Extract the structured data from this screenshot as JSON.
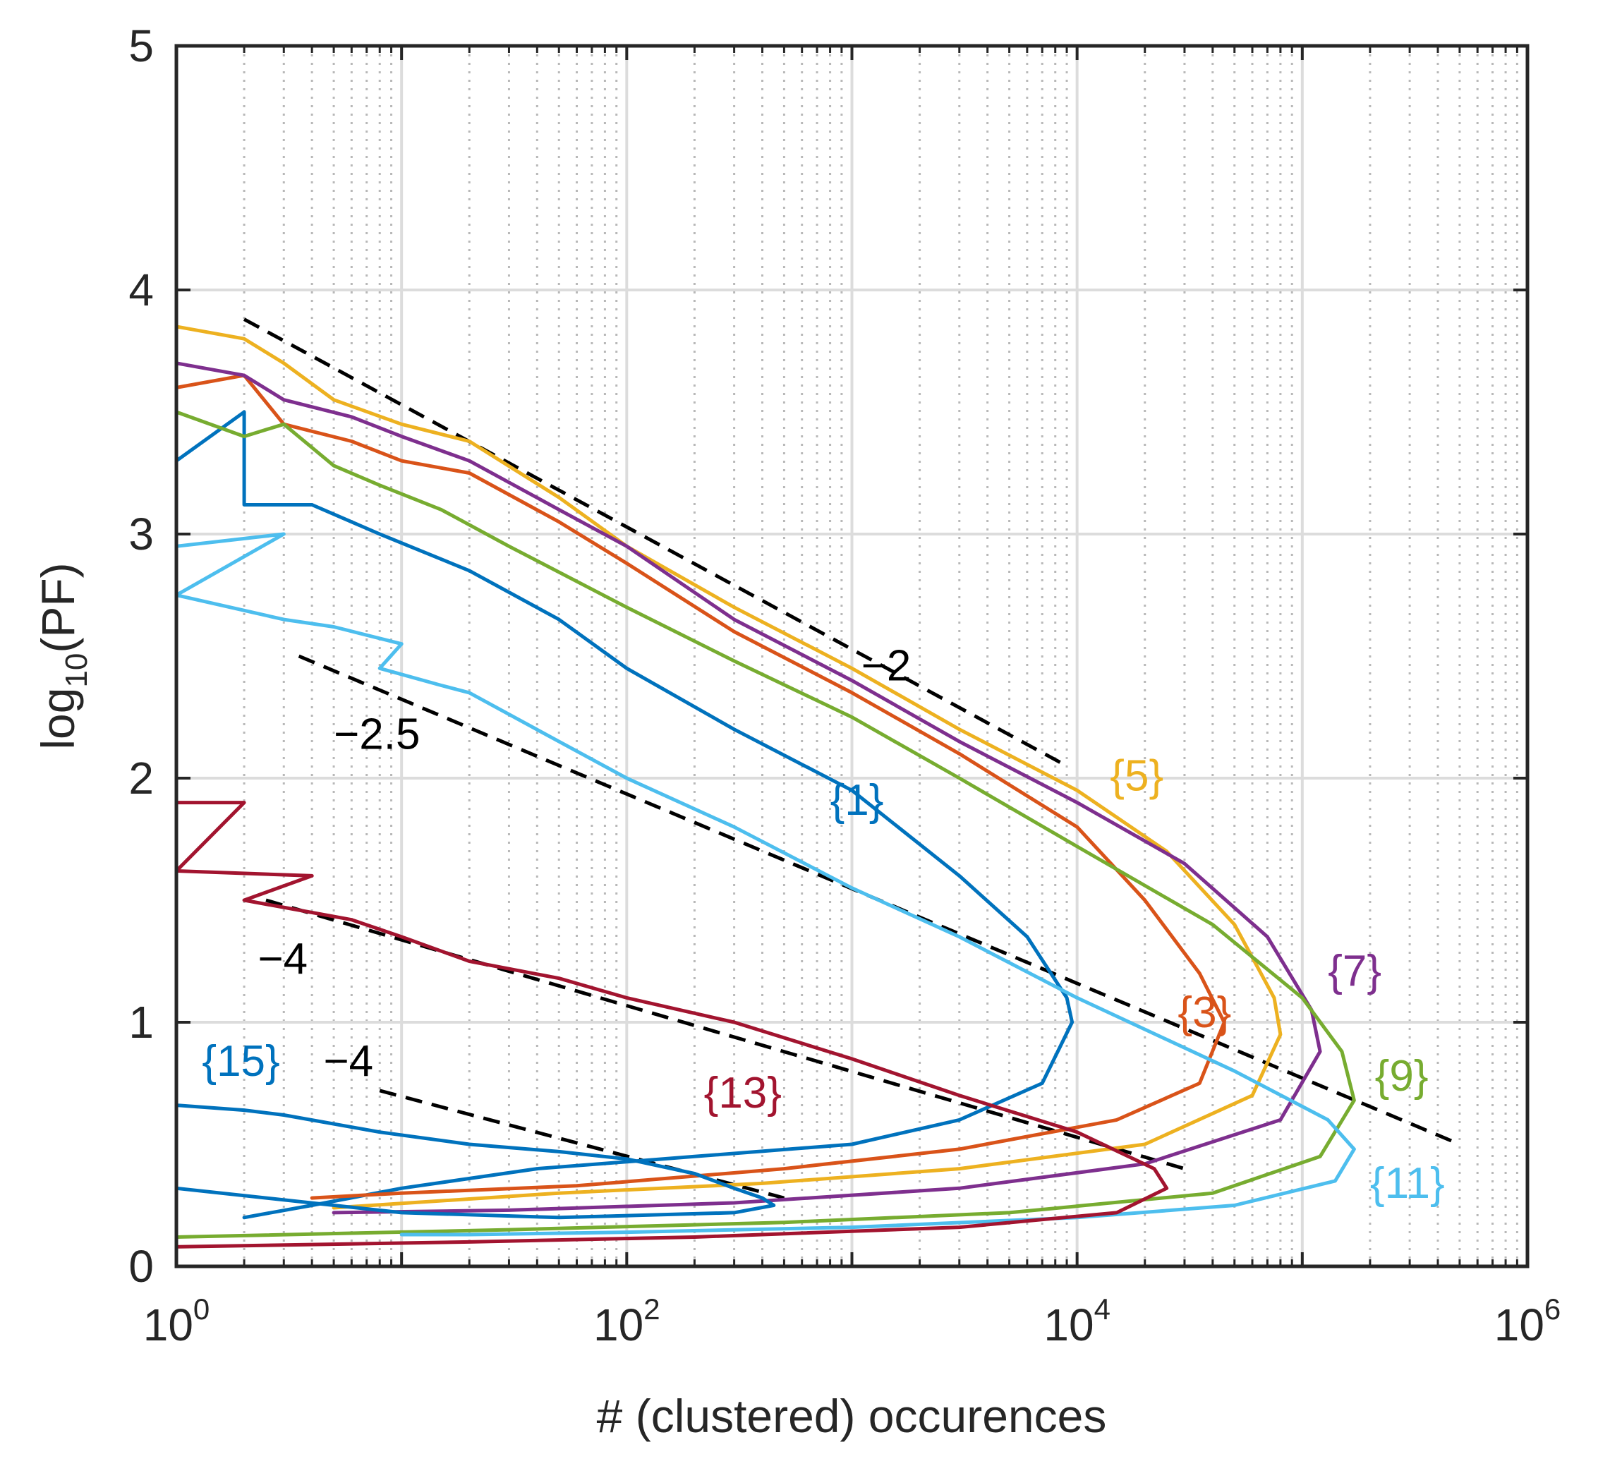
{
  "chart_data": {
    "type": "line",
    "title": "",
    "xlabel": "# (clustered) occurences",
    "ylabel_base": "log",
    "ylabel_sub": "10",
    "ylabel_tail": "(PF)",
    "xscale": "log",
    "xlim": [
      1,
      1000000
    ],
    "ylim": [
      0,
      5
    ],
    "grid": true,
    "x_tick_labels": [
      {
        "value": 1,
        "base": "10",
        "exp": "0"
      },
      {
        "value": 100,
        "base": "10",
        "exp": "2"
      },
      {
        "value": 10000,
        "base": "10",
        "exp": "4"
      },
      {
        "value": 1000000,
        "base": "10",
        "exp": "6"
      }
    ],
    "y_tick_labels": [
      {
        "value": 0,
        "text": "0"
      },
      {
        "value": 1,
        "text": "1"
      },
      {
        "value": 2,
        "text": "2"
      },
      {
        "value": 3,
        "text": "3"
      },
      {
        "value": 4,
        "text": "4"
      },
      {
        "value": 5,
        "text": "5"
      }
    ],
    "series": [
      {
        "name": "{1}",
        "color": "#0072BD",
        "label": {
          "text": "{1}",
          "x": 800,
          "y": 1.85
        },
        "points": [
          [
            1,
            3.3
          ],
          [
            2,
            3.5
          ],
          [
            2,
            3.12
          ],
          [
            4,
            3.12
          ],
          [
            8,
            3.0
          ],
          [
            20,
            2.85
          ],
          [
            50,
            2.65
          ],
          [
            100,
            2.45
          ],
          [
            300,
            2.2
          ],
          [
            1000,
            1.95
          ],
          [
            3000,
            1.6
          ],
          [
            6000,
            1.35
          ],
          [
            9000,
            1.1
          ],
          [
            9500,
            1.0
          ],
          [
            7000,
            0.75
          ],
          [
            3000,
            0.6
          ],
          [
            1000,
            0.5
          ],
          [
            200,
            0.45
          ],
          [
            40,
            0.4
          ],
          [
            10,
            0.32
          ],
          [
            4,
            0.25
          ],
          [
            2,
            0.2
          ]
        ]
      },
      {
        "name": "{3}",
        "color": "#D95319",
        "label": {
          "text": "{3}",
          "x": 28000,
          "y": 0.98
        },
        "points": [
          [
            1,
            3.6
          ],
          [
            2,
            3.65
          ],
          [
            3,
            3.45
          ],
          [
            6,
            3.38
          ],
          [
            10,
            3.3
          ],
          [
            20,
            3.25
          ],
          [
            50,
            3.05
          ],
          [
            100,
            2.88
          ],
          [
            300,
            2.6
          ],
          [
            1000,
            2.35
          ],
          [
            3000,
            2.1
          ],
          [
            10000,
            1.8
          ],
          [
            20000,
            1.5
          ],
          [
            35000,
            1.2
          ],
          [
            45000,
            1.0
          ],
          [
            35000,
            0.75
          ],
          [
            15000,
            0.6
          ],
          [
            3000,
            0.48
          ],
          [
            500,
            0.4
          ],
          [
            60,
            0.33
          ],
          [
            10,
            0.3
          ],
          [
            4,
            0.28
          ]
        ]
      },
      {
        "name": "{5}",
        "color": "#EDB120",
        "label": {
          "text": "{5}",
          "x": 14000,
          "y": 1.95
        },
        "points": [
          [
            1,
            3.85
          ],
          [
            2,
            3.8
          ],
          [
            3,
            3.7
          ],
          [
            5,
            3.55
          ],
          [
            10,
            3.45
          ],
          [
            20,
            3.38
          ],
          [
            50,
            3.15
          ],
          [
            100,
            2.95
          ],
          [
            300,
            2.7
          ],
          [
            1000,
            2.45
          ],
          [
            3000,
            2.2
          ],
          [
            10000,
            1.95
          ],
          [
            25000,
            1.7
          ],
          [
            50000,
            1.4
          ],
          [
            75000,
            1.1
          ],
          [
            80000,
            0.95
          ],
          [
            60000,
            0.7
          ],
          [
            20000,
            0.5
          ],
          [
            3000,
            0.4
          ],
          [
            400,
            0.34
          ],
          [
            50,
            0.3
          ],
          [
            5,
            0.24
          ]
        ]
      },
      {
        "name": "{7}",
        "color": "#7E2F8E",
        "label": {
          "text": "{7}",
          "x": 130000,
          "y": 1.15
        },
        "points": [
          [
            1,
            3.7
          ],
          [
            2,
            3.65
          ],
          [
            3,
            3.55
          ],
          [
            6,
            3.48
          ],
          [
            10,
            3.4
          ],
          [
            20,
            3.3
          ],
          [
            50,
            3.1
          ],
          [
            100,
            2.95
          ],
          [
            300,
            2.65
          ],
          [
            1000,
            2.4
          ],
          [
            3000,
            2.15
          ],
          [
            10000,
            1.9
          ],
          [
            30000,
            1.65
          ],
          [
            70000,
            1.35
          ],
          [
            110000,
            1.05
          ],
          [
            120000,
            0.88
          ],
          [
            80000,
            0.6
          ],
          [
            20000,
            0.42
          ],
          [
            3000,
            0.32
          ],
          [
            300,
            0.26
          ],
          [
            30,
            0.23
          ],
          [
            5,
            0.22
          ]
        ]
      },
      {
        "name": "{9}",
        "color": "#77AC30",
        "label": {
          "text": "{9}",
          "x": 210000,
          "y": 0.72
        },
        "points": [
          [
            1,
            3.5
          ],
          [
            2,
            3.4
          ],
          [
            3,
            3.45
          ],
          [
            5,
            3.28
          ],
          [
            8,
            3.2
          ],
          [
            15,
            3.1
          ],
          [
            30,
            2.95
          ],
          [
            100,
            2.7
          ],
          [
            300,
            2.48
          ],
          [
            1000,
            2.25
          ],
          [
            3000,
            2.0
          ],
          [
            10000,
            1.72
          ],
          [
            40000,
            1.4
          ],
          [
            100000,
            1.1
          ],
          [
            150000,
            0.88
          ],
          [
            170000,
            0.68
          ],
          [
            120000,
            0.45
          ],
          [
            40000,
            0.3
          ],
          [
            5000,
            0.22
          ],
          [
            500,
            0.18
          ],
          [
            30,
            0.15
          ],
          [
            1,
            0.12
          ]
        ]
      },
      {
        "name": "{11}",
        "color": "#4DBEEE",
        "label": {
          "text": "{11}",
          "x": 200000,
          "y": 0.28
        },
        "points": [
          [
            1,
            2.95
          ],
          [
            3,
            3.0
          ],
          [
            1,
            2.75
          ],
          [
            3,
            2.65
          ],
          [
            5,
            2.62
          ],
          [
            10,
            2.55
          ],
          [
            8,
            2.45
          ],
          [
            15,
            2.38
          ],
          [
            20,
            2.35
          ],
          [
            50,
            2.15
          ],
          [
            100,
            2.0
          ],
          [
            300,
            1.8
          ],
          [
            1000,
            1.55
          ],
          [
            3000,
            1.35
          ],
          [
            10000,
            1.1
          ],
          [
            50000,
            0.8
          ],
          [
            130000,
            0.6
          ],
          [
            170000,
            0.48
          ],
          [
            140000,
            0.35
          ],
          [
            50000,
            0.25
          ],
          [
            10000,
            0.2
          ],
          [
            1000,
            0.16
          ],
          [
            100,
            0.14
          ],
          [
            20,
            0.13
          ],
          [
            10,
            0.13
          ]
        ]
      },
      {
        "name": "{13}",
        "color": "#A2142F",
        "label": {
          "text": "{13}",
          "x": 220,
          "y": 0.65
        },
        "points": [
          [
            1,
            1.9
          ],
          [
            2,
            1.9
          ],
          [
            1,
            1.62
          ],
          [
            4,
            1.6
          ],
          [
            2,
            1.5
          ],
          [
            6,
            1.42
          ],
          [
            10,
            1.35
          ],
          [
            20,
            1.25
          ],
          [
            50,
            1.18
          ],
          [
            100,
            1.1
          ],
          [
            300,
            1.0
          ],
          [
            1000,
            0.85
          ],
          [
            3000,
            0.7
          ],
          [
            10000,
            0.55
          ],
          [
            22000,
            0.4
          ],
          [
            25000,
            0.32
          ],
          [
            15000,
            0.22
          ],
          [
            3000,
            0.16
          ],
          [
            200,
            0.12
          ],
          [
            20,
            0.1
          ],
          [
            1,
            0.08
          ]
        ]
      },
      {
        "name": "{15}",
        "color": "#0072BD",
        "label": {
          "text": "{15}",
          "x": 1.3,
          "y": 0.78
        },
        "points": [
          [
            1,
            0.66
          ],
          [
            2,
            0.64
          ],
          [
            3,
            0.62
          ],
          [
            8,
            0.55
          ],
          [
            20,
            0.5
          ],
          [
            50,
            0.47
          ],
          [
            100,
            0.44
          ],
          [
            200,
            0.38
          ],
          [
            300,
            0.32
          ],
          [
            400,
            0.28
          ],
          [
            450,
            0.25
          ],
          [
            300,
            0.22
          ],
          [
            50,
            0.2
          ],
          [
            10,
            0.22
          ],
          [
            1,
            0.32
          ]
        ]
      }
    ],
    "reference_lines": [
      {
        "slope_label": "−2",
        "from": [
          2,
          3.88
        ],
        "to": [
          9000,
          2.05
        ],
        "label_pos": [
          1100,
          2.4
        ]
      },
      {
        "slope_label": "−2.5",
        "from": [
          3.5,
          2.5
        ],
        "to": [
          500000,
          0.5
        ],
        "label_pos": [
          5,
          2.12
        ]
      },
      {
        "slope_label": "−4",
        "from": [
          2.5,
          1.5
        ],
        "to": [
          30000,
          0.4
        ],
        "label_pos": [
          2.3,
          1.2
        ]
      },
      {
        "slope_label": "−4",
        "from": [
          8,
          0.72
        ],
        "to": [
          500,
          0.28
        ],
        "label_pos": [
          4.5,
          0.78
        ]
      }
    ]
  }
}
